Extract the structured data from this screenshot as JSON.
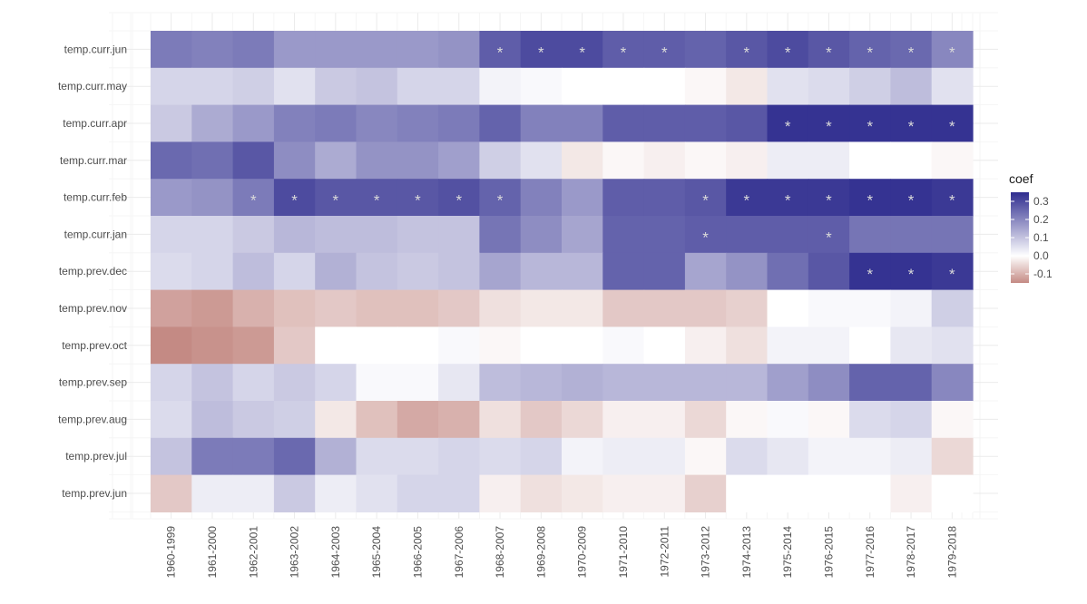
{
  "chart_data": {
    "type": "heatmap",
    "x": [
      "1960-1999",
      "1961-2000",
      "1962-2001",
      "1963-2002",
      "1964-2003",
      "1965-2004",
      "1966-2005",
      "1967-2006",
      "1968-2007",
      "1969-2008",
      "1970-2009",
      "1971-2010",
      "1972-2011",
      "1973-2012",
      "1974-2013",
      "1975-2014",
      "1976-2015",
      "1977-2016",
      "1978-2017",
      "1979-2018"
    ],
    "y": [
      "temp.curr.jun",
      "temp.curr.may",
      "temp.curr.apr",
      "temp.curr.mar",
      "temp.curr.feb",
      "temp.curr.jan",
      "temp.prev.dec",
      "temp.prev.nov",
      "temp.prev.oct",
      "temp.prev.sep",
      "temp.prev.aug",
      "temp.prev.jul",
      "temp.prev.jun"
    ],
    "values": [
      [
        0.22,
        0.21,
        0.22,
        0.17,
        0.17,
        0.17,
        0.17,
        0.18,
        0.27,
        0.3,
        0.3,
        0.27,
        0.27,
        0.26,
        0.28,
        0.3,
        0.28,
        0.26,
        0.25,
        0.2
      ],
      [
        0.07,
        0.07,
        0.08,
        0.05,
        0.09,
        0.1,
        0.07,
        0.07,
        0.02,
        0.01,
        0.0,
        0.0,
        0.0,
        -0.01,
        -0.03,
        0.05,
        0.06,
        0.08,
        0.11,
        0.05
      ],
      [
        0.09,
        0.14,
        0.17,
        0.21,
        0.22,
        0.2,
        0.21,
        0.22,
        0.26,
        0.21,
        0.21,
        0.27,
        0.27,
        0.27,
        0.28,
        0.34,
        0.34,
        0.34,
        0.34,
        0.34
      ],
      [
        0.25,
        0.24,
        0.28,
        0.19,
        0.14,
        0.18,
        0.18,
        0.16,
        0.08,
        0.05,
        -0.03,
        -0.01,
        -0.02,
        -0.01,
        -0.02,
        0.03,
        0.03,
        0.0,
        0.0,
        -0.01
      ],
      [
        0.17,
        0.18,
        0.22,
        0.3,
        0.28,
        0.28,
        0.28,
        0.29,
        0.26,
        0.21,
        0.17,
        0.27,
        0.27,
        0.28,
        0.33,
        0.33,
        0.33,
        0.34,
        0.34,
        0.33
      ],
      [
        0.07,
        0.07,
        0.09,
        0.12,
        0.11,
        0.11,
        0.1,
        0.1,
        0.23,
        0.19,
        0.15,
        0.26,
        0.26,
        0.27,
        0.27,
        0.27,
        0.27,
        0.23,
        0.23,
        0.23
      ],
      [
        0.06,
        0.07,
        0.11,
        0.07,
        0.13,
        0.1,
        0.09,
        0.1,
        0.15,
        0.12,
        0.12,
        0.26,
        0.26,
        0.15,
        0.18,
        0.24,
        0.28,
        0.34,
        0.34,
        0.33
      ],
      [
        -0.12,
        -0.13,
        -0.1,
        -0.08,
        -0.07,
        -0.08,
        -0.08,
        -0.07,
        -0.04,
        -0.03,
        -0.03,
        -0.07,
        -0.07,
        -0.07,
        -0.06,
        0.0,
        0.01,
        0.01,
        0.02,
        0.08
      ],
      [
        -0.15,
        -0.14,
        -0.13,
        -0.07,
        0.0,
        0.0,
        0.0,
        0.01,
        -0.01,
        0.0,
        0.0,
        0.01,
        0.0,
        -0.02,
        -0.04,
        0.02,
        0.02,
        0.0,
        0.04,
        0.05
      ],
      [
        0.07,
        0.1,
        0.07,
        0.09,
        0.07,
        0.01,
        0.01,
        0.04,
        0.11,
        0.12,
        0.13,
        0.12,
        0.12,
        0.12,
        0.12,
        0.16,
        0.19,
        0.26,
        0.26,
        0.2
      ],
      [
        0.06,
        0.11,
        0.09,
        0.08,
        -0.03,
        -0.08,
        -0.11,
        -0.1,
        -0.04,
        -0.07,
        -0.05,
        -0.02,
        -0.02,
        -0.05,
        -0.01,
        0.01,
        -0.01,
        0.06,
        0.07,
        -0.01
      ],
      [
        0.1,
        0.22,
        0.22,
        0.25,
        0.13,
        0.06,
        0.06,
        0.07,
        0.06,
        0.07,
        0.02,
        0.03,
        0.03,
        -0.01,
        0.06,
        0.04,
        0.02,
        0.02,
        0.03,
        -0.05
      ],
      [
        -0.07,
        0.03,
        0.03,
        0.09,
        0.03,
        0.05,
        0.07,
        0.07,
        -0.02,
        -0.04,
        -0.03,
        -0.02,
        -0.02,
        -0.06,
        0.0,
        0.0,
        0.0,
        0.0,
        -0.02,
        0.0
      ]
    ],
    "stars": [
      [
        0,
        0,
        0,
        0,
        0,
        0,
        0,
        0,
        1,
        1,
        1,
        1,
        1,
        0,
        1,
        1,
        1,
        1,
        1,
        1
      ],
      [
        0,
        0,
        0,
        0,
        0,
        0,
        0,
        0,
        0,
        0,
        0,
        0,
        0,
        0,
        0,
        0,
        0,
        0,
        0,
        0
      ],
      [
        0,
        0,
        0,
        0,
        0,
        0,
        0,
        0,
        0,
        0,
        0,
        0,
        0,
        0,
        0,
        1,
        1,
        1,
        1,
        1
      ],
      [
        0,
        0,
        0,
        0,
        0,
        0,
        0,
        0,
        0,
        0,
        0,
        0,
        0,
        0,
        0,
        0,
        0,
        0,
        0,
        0
      ],
      [
        0,
        0,
        1,
        1,
        1,
        1,
        1,
        1,
        1,
        0,
        0,
        0,
        0,
        1,
        1,
        1,
        1,
        1,
        1,
        1
      ],
      [
        0,
        0,
        0,
        0,
        0,
        0,
        0,
        0,
        0,
        0,
        0,
        0,
        0,
        1,
        0,
        0,
        1,
        0,
        0,
        0
      ],
      [
        0,
        0,
        0,
        0,
        0,
        0,
        0,
        0,
        0,
        0,
        0,
        0,
        0,
        0,
        0,
        0,
        0,
        1,
        1,
        1
      ],
      [
        0,
        0,
        0,
        0,
        0,
        0,
        0,
        0,
        0,
        0,
        0,
        0,
        0,
        0,
        0,
        0,
        0,
        0,
        0,
        0
      ],
      [
        0,
        0,
        0,
        0,
        0,
        0,
        0,
        0,
        0,
        0,
        0,
        0,
        0,
        0,
        0,
        0,
        0,
        0,
        0,
        0
      ],
      [
        0,
        0,
        0,
        0,
        0,
        0,
        0,
        0,
        0,
        0,
        0,
        0,
        0,
        0,
        0,
        0,
        0,
        0,
        0,
        0
      ],
      [
        0,
        0,
        0,
        0,
        0,
        0,
        0,
        0,
        0,
        0,
        0,
        0,
        0,
        0,
        0,
        0,
        0,
        0,
        0,
        0
      ],
      [
        0,
        0,
        0,
        0,
        0,
        0,
        0,
        0,
        0,
        0,
        0,
        0,
        0,
        0,
        0,
        0,
        0,
        0,
        0,
        0
      ],
      [
        0,
        0,
        0,
        0,
        0,
        0,
        0,
        0,
        0,
        0,
        0,
        0,
        0,
        0,
        0,
        0,
        0,
        0,
        0,
        0
      ]
    ],
    "star_symbol": "*",
    "legend": {
      "title": "coef",
      "ticks": [
        0.3,
        0.2,
        0.1,
        0.0,
        -0.1
      ],
      "tick_labels": [
        "0.3",
        "0.2",
        "0.1",
        "0.0",
        "-0.1"
      ],
      "range": [
        -0.15,
        0.35
      ],
      "placement": "right"
    },
    "colors": {
      "low": "#c48a84",
      "mid": "#ffffff",
      "high": "#2f2d8f"
    },
    "grid": true
  }
}
